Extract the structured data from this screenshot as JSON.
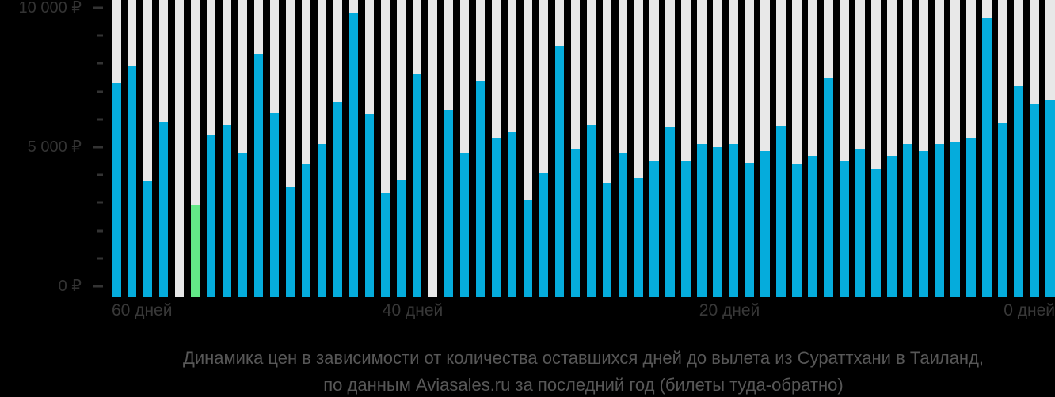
{
  "chart_data": {
    "type": "bar",
    "title": "Динамика цен в зависимости от количества оставшихся дней до вылета из Сураттхани в Таиланд, по данным Aviasales.ru за последний год (билеты туда-обратно)",
    "title_lines": [
      "Динамика цен в зависимости от количества оставшихся дней до вылета из Сураттхани в Таиланд,",
      "по данным Aviasales.ru за последний год (билеты туда-обратно)"
    ],
    "xlabel": "",
    "ylabel": "",
    "ylim": [
      0,
      10000
    ],
    "y_major_step": 5000,
    "y_minor_step": 1000,
    "y_tick_labels": {
      "0": "0 ₽",
      "5000": "5 000 ₽",
      "10000": "10 000 ₽"
    },
    "x_tick_labels": [
      "60 дней",
      "40 дней",
      "20 дней",
      "0 дней"
    ],
    "x_axis_note": "bars run from 60 days left (leftmost) to 0 days left (rightmost)",
    "values": [
      7200,
      7800,
      3900,
      5900,
      null,
      3100,
      5450,
      5800,
      4850,
      8200,
      6200,
      3700,
      4450,
      5150,
      6550,
      9550,
      6150,
      3500,
      3950,
      7500,
      null,
      6300,
      4850,
      7250,
      5350,
      5550,
      3250,
      4150,
      8450,
      5000,
      5800,
      3850,
      4850,
      4000,
      4600,
      5700,
      4600,
      5150,
      5050,
      5150,
      4500,
      4900,
      5750,
      4450,
      4750,
      7400,
      4600,
      5000,
      4300,
      4750,
      5150,
      4900,
      5150,
      5200,
      5350,
      9400,
      5850,
      7100,
      6500,
      6650
    ],
    "highlight_index": 5,
    "grid": false,
    "legend": "none",
    "colors": {
      "bar": "#05acdc",
      "highlight_bar": "#63e887",
      "track": "#e8e8e8",
      "background": "#000000",
      "axis_label": "#333333",
      "title": "#575757"
    }
  }
}
